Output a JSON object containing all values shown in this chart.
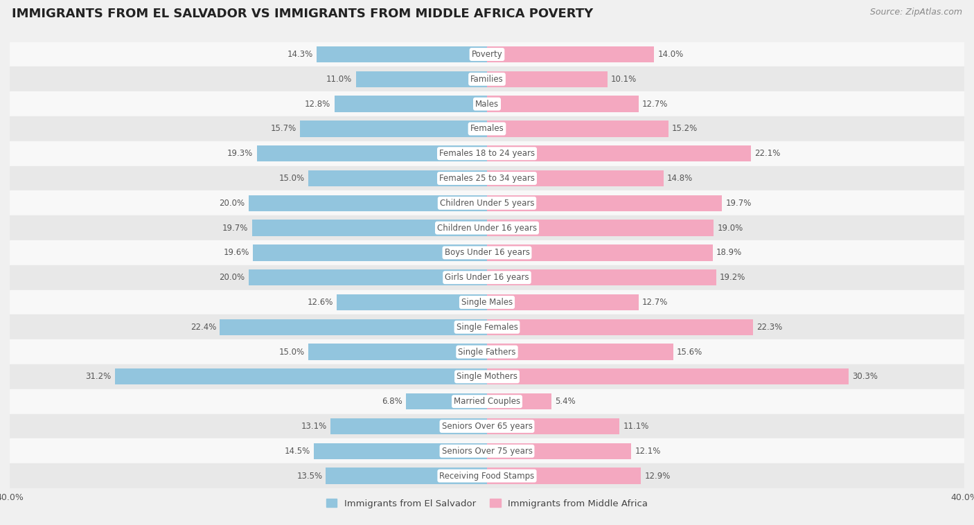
{
  "title": "IMMIGRANTS FROM EL SALVADOR VS IMMIGRANTS FROM MIDDLE AFRICA POVERTY",
  "source": "Source: ZipAtlas.com",
  "categories": [
    "Poverty",
    "Families",
    "Males",
    "Females",
    "Females 18 to 24 years",
    "Females 25 to 34 years",
    "Children Under 5 years",
    "Children Under 16 years",
    "Boys Under 16 years",
    "Girls Under 16 years",
    "Single Males",
    "Single Females",
    "Single Fathers",
    "Single Mothers",
    "Married Couples",
    "Seniors Over 65 years",
    "Seniors Over 75 years",
    "Receiving Food Stamps"
  ],
  "left_values": [
    14.3,
    11.0,
    12.8,
    15.7,
    19.3,
    15.0,
    20.0,
    19.7,
    19.6,
    20.0,
    12.6,
    22.4,
    15.0,
    31.2,
    6.8,
    13.1,
    14.5,
    13.5
  ],
  "right_values": [
    14.0,
    10.1,
    12.7,
    15.2,
    22.1,
    14.8,
    19.7,
    19.0,
    18.9,
    19.2,
    12.7,
    22.3,
    15.6,
    30.3,
    5.4,
    11.1,
    12.1,
    12.9
  ],
  "left_color": "#92c5de",
  "right_color": "#f4a8c0",
  "label_color": "#555555",
  "bar_label_color_outside": "#555555",
  "bg_color": "#f0f0f0",
  "row_color_light": "#f8f8f8",
  "row_color_dark": "#e8e8e8",
  "xlim": 40.0,
  "left_legend": "Immigrants from El Salvador",
  "right_legend": "Immigrants from Middle Africa",
  "title_fontsize": 13,
  "source_fontsize": 9,
  "category_fontsize": 8.5,
  "value_fontsize": 8.5,
  "bar_height": 0.65
}
